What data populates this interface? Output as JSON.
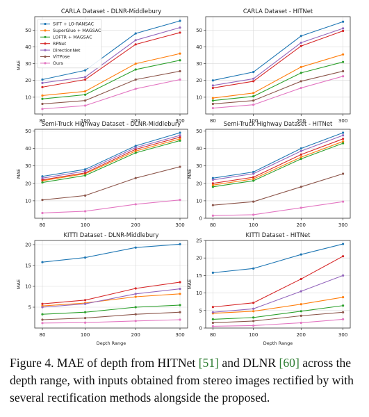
{
  "colors": {
    "SIFT + LO-RANSAC": "#1f77b4",
    "SuperGlue + MAGSAC": "#ff7f0e",
    "LOFTR + MAGSAC": "#2ca02c",
    "RPNet": "#d62728",
    "DirectionNet": "#9467bd",
    "ViTPose": "#8c564b",
    "Ours": "#e377c2"
  },
  "chart_data": [
    {
      "type": "line",
      "title": "CARLA Dataset - DLNR-Middlebury",
      "xlabel": "",
      "ylabel": "MAE",
      "categories": [
        "80",
        "100",
        "200",
        "300"
      ],
      "ylim": [
        0,
        58
      ],
      "yticks": [
        10,
        20,
        30,
        40,
        50
      ],
      "legend": "top-left",
      "grid": true,
      "series": [
        {
          "name": "SIFT + LO-RANSAC",
          "values": [
            20.5,
            26,
            48,
            55.5
          ]
        },
        {
          "name": "SuperGlue + MAGSAC",
          "values": [
            11,
            13.5,
            30,
            36
          ]
        },
        {
          "name": "LOFTR + MAGSAC",
          "values": [
            9,
            11.5,
            26.5,
            32
          ]
        },
        {
          "name": "RPNet",
          "values": [
            16,
            20.5,
            41.5,
            48.5
          ]
        },
        {
          "name": "DirectionNet",
          "values": [
            18.5,
            22,
            44,
            51.5
          ]
        },
        {
          "name": "ViTPose",
          "values": [
            6,
            8,
            20.5,
            25.5
          ]
        },
        {
          "name": "Ours",
          "values": [
            3,
            5,
            15,
            20.5
          ]
        }
      ]
    },
    {
      "type": "line",
      "title": "CARLA Dataset - HITNet",
      "xlabel": "",
      "ylabel": "",
      "categories": [
        "80",
        "100",
        "200",
        "300"
      ],
      "ylim": [
        0,
        58
      ],
      "yticks": [
        10,
        20,
        30,
        40,
        50
      ],
      "grid": true,
      "series": [
        {
          "name": "SIFT + LO-RANSAC",
          "values": [
            20,
            25,
            46.5,
            55
          ]
        },
        {
          "name": "SuperGlue + MAGSAC",
          "values": [
            9.5,
            12.5,
            28,
            35.5
          ]
        },
        {
          "name": "LOFTR + MAGSAC",
          "values": [
            8,
            10.5,
            24.5,
            31
          ]
        },
        {
          "name": "RPNet",
          "values": [
            15.5,
            19.5,
            40.5,
            49.5
          ]
        },
        {
          "name": "DirectionNet",
          "values": [
            17,
            21,
            42.5,
            51
          ]
        },
        {
          "name": "ViTPose",
          "values": [
            6,
            8,
            19.5,
            25.5
          ]
        },
        {
          "name": "Ours",
          "values": [
            3.5,
            5.5,
            15.5,
            22.5
          ]
        }
      ]
    },
    {
      "type": "line",
      "title": "Semi-Truck Highway Dataset - DLNR-Middlebury",
      "xlabel": "",
      "ylabel": "MAE",
      "categories": [
        "80",
        "100",
        "200",
        "300"
      ],
      "ylim": [
        0,
        51
      ],
      "yticks": [
        10,
        20,
        30,
        40,
        50
      ],
      "grid": true,
      "series": [
        {
          "name": "SIFT + LO-RANSAC",
          "values": [
            24,
            28,
            41.5,
            49
          ]
        },
        {
          "name": "SuperGlue + MAGSAC",
          "values": [
            21.5,
            25.5,
            38.5,
            45.5
          ]
        },
        {
          "name": "LOFTR + MAGSAC",
          "values": [
            20.5,
            24.5,
            37.5,
            44.5
          ]
        },
        {
          "name": "RPNet",
          "values": [
            22,
            26,
            39.5,
            46.5
          ]
        },
        {
          "name": "DirectionNet",
          "values": [
            23,
            27,
            40.5,
            47.5
          ]
        },
        {
          "name": "ViTPose",
          "values": [
            10.5,
            13,
            23,
            29.5
          ]
        },
        {
          "name": "Ours",
          "values": [
            3,
            4,
            8,
            10.5
          ]
        }
      ]
    },
    {
      "type": "line",
      "title": "Semi-Truck Highway Dataset - HITNet",
      "xlabel": "",
      "ylabel": "MAE",
      "categories": [
        "80",
        "100",
        "200",
        "300"
      ],
      "ylim": [
        0,
        51
      ],
      "yticks": [
        0,
        10,
        20,
        30,
        40,
        50
      ],
      "grid": true,
      "series": [
        {
          "name": "SIFT + LO-RANSAC",
          "values": [
            23,
            26.5,
            40,
            49
          ]
        },
        {
          "name": "SuperGlue + MAGSAC",
          "values": [
            19,
            22.5,
            35,
            44
          ]
        },
        {
          "name": "LOFTR + MAGSAC",
          "values": [
            18,
            21.5,
            34,
            43
          ]
        },
        {
          "name": "RPNet",
          "values": [
            20,
            23.5,
            36.5,
            45.5
          ]
        },
        {
          "name": "DirectionNet",
          "values": [
            22,
            25.5,
            38.5,
            47.5
          ]
        },
        {
          "name": "ViTPose",
          "values": [
            7.5,
            9.5,
            18,
            25.5
          ]
        },
        {
          "name": "Ours",
          "values": [
            1.5,
            2,
            6,
            9.5
          ]
        }
      ]
    },
    {
      "type": "line",
      "title": "KITTI Dataset - DLNR-Middlebury",
      "xlabel": "Depth Range",
      "ylabel": "MAE",
      "categories": [
        "80",
        "100",
        "200",
        "300"
      ],
      "ylim": [
        0,
        21
      ],
      "yticks": [
        5,
        10,
        15,
        20
      ],
      "grid": true,
      "series": [
        {
          "name": "SIFT + LO-RANSAC",
          "values": [
            15.8,
            16.9,
            19.3,
            20.1
          ]
        },
        {
          "name": "SuperGlue + MAGSAC",
          "values": [
            5.3,
            6,
            7.5,
            8.2
          ]
        },
        {
          "name": "LOFTR + MAGSAC",
          "values": [
            3.3,
            3.8,
            5,
            5.5
          ]
        },
        {
          "name": "RPNet",
          "values": [
            5.8,
            6.7,
            9.5,
            11
          ]
        },
        {
          "name": "DirectionNet",
          "values": [
            5,
            5.8,
            8.2,
            9.4
          ]
        },
        {
          "name": "ViTPose",
          "values": [
            2,
            2.4,
            3.3,
            3.8
          ]
        },
        {
          "name": "Ours",
          "values": [
            1.2,
            1.3,
            1.7,
            2
          ]
        }
      ]
    },
    {
      "type": "line",
      "title": "KITTI Dataset - HITNet",
      "xlabel": "Depth Range",
      "ylabel": "MAE",
      "categories": [
        "80",
        "100",
        "200",
        "300"
      ],
      "ylim": [
        0,
        25
      ],
      "yticks": [
        0,
        5,
        10,
        15,
        20,
        25
      ],
      "grid": true,
      "series": [
        {
          "name": "SIFT + LO-RANSAC",
          "values": [
            15.8,
            17,
            21,
            24
          ]
        },
        {
          "name": "SuperGlue + MAGSAC",
          "values": [
            4.2,
            4.8,
            6.8,
            8.8
          ]
        },
        {
          "name": "LOFTR + MAGSAC",
          "values": [
            2.5,
            3,
            4.8,
            6.4
          ]
        },
        {
          "name": "RPNet",
          "values": [
            6,
            7.2,
            14,
            20.5
          ]
        },
        {
          "name": "DirectionNet",
          "values": [
            4.5,
            5.5,
            10.5,
            15
          ]
        },
        {
          "name": "ViTPose",
          "values": [
            1.5,
            2,
            3.5,
            4.5
          ]
        },
        {
          "name": "Ours",
          "values": [
            0.5,
            0.7,
            1.5,
            2.5
          ]
        }
      ]
    }
  ],
  "caption": {
    "prefix": "Figure 4. MAE of depth from HITNet ",
    "ref1": "[51]",
    "middle": " and DLNR ",
    "ref2": "[60]",
    "suffix": " across the depth range, with inputs obtained from stereo images rectified by with several rectification methods alongside the proposed."
  }
}
